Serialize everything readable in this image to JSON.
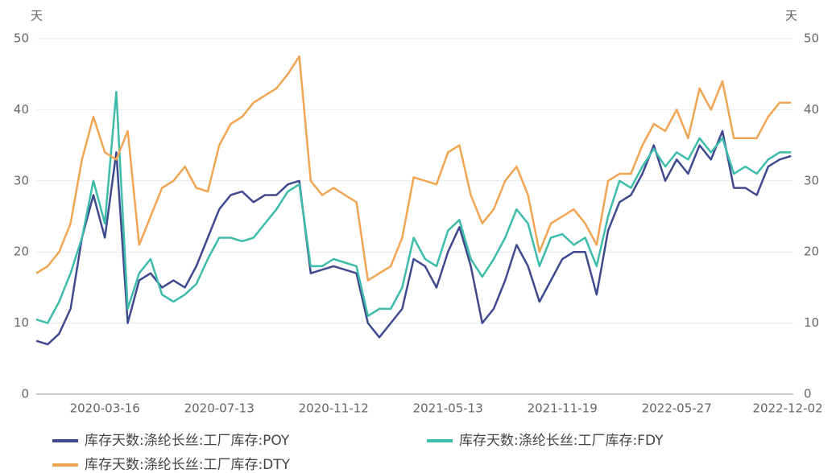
{
  "chart_data": {
    "type": "line",
    "y_label": "天",
    "y2_label": "天",
    "categories": [
      null,
      null,
      null,
      null,
      null,
      null,
      "2020-03-16",
      null,
      null,
      null,
      null,
      null,
      null,
      null,
      null,
      null,
      "2020-07-13",
      null,
      null,
      null,
      null,
      null,
      null,
      null,
      null,
      null,
      "2020-11-12",
      null,
      null,
      null,
      null,
      null,
      null,
      null,
      null,
      null,
      "2021-05-13",
      null,
      null,
      null,
      null,
      null,
      null,
      null,
      null,
      null,
      "2021-11-19",
      null,
      null,
      null,
      null,
      null,
      null,
      null,
      null,
      null,
      "2022-05-27",
      null,
      null,
      null,
      null,
      null,
      null,
      null,
      null,
      null,
      "2022-12-02"
    ],
    "series": [
      {
        "name": "库存天数:涤纶长丝:工厂库存:POY",
        "color": "#3f4a8e",
        "values": [
          7.5,
          7,
          8.5,
          12,
          22,
          28,
          22,
          34,
          10,
          16,
          17,
          15,
          16,
          15,
          18,
          22,
          26,
          28,
          28.5,
          27,
          28,
          28,
          29.5,
          30,
          17,
          17.5,
          18,
          17.5,
          17,
          10,
          8,
          10,
          12,
          19,
          18,
          15,
          20,
          23.5,
          18,
          10,
          12,
          16,
          21,
          18,
          13,
          16,
          19,
          20,
          20,
          14,
          23,
          27,
          28,
          31,
          35,
          30,
          33,
          31,
          35,
          33,
          37,
          29,
          29,
          28,
          32,
          33,
          33.5
        ]
      },
      {
        "name": "库存天数:涤纶长丝:工厂库存:FDY",
        "color": "#3dbcaa",
        "values": [
          10.5,
          10,
          13,
          17,
          22,
          30,
          24,
          42.5,
          12,
          17,
          19,
          14,
          13,
          14,
          15.5,
          19,
          22,
          22,
          21.5,
          22,
          24,
          26,
          28.5,
          29.5,
          18,
          18,
          19,
          18.5,
          18,
          11,
          12,
          12,
          15,
          22,
          19,
          18,
          23,
          24.5,
          19,
          16.5,
          19,
          22,
          26,
          24,
          18,
          22,
          22.5,
          21,
          22,
          18,
          25,
          30,
          29,
          32,
          34.5,
          32,
          34,
          33,
          36,
          34,
          36,
          31,
          32,
          31,
          33,
          34,
          34
        ]
      },
      {
        "name": "库存天数:涤纶长丝:工厂库存:DTY",
        "color": "#f0a553",
        "values": [
          17,
          18,
          20,
          24,
          33,
          39,
          34,
          33,
          37,
          21,
          25,
          29,
          30,
          32,
          29,
          28.5,
          35,
          38,
          39,
          41,
          42,
          43,
          45,
          47.5,
          30,
          28,
          29,
          28,
          27,
          16,
          17,
          18,
          22,
          30.5,
          30,
          29.5,
          34,
          35,
          28,
          24,
          26,
          30,
          32,
          28,
          20,
          24,
          25,
          26,
          24,
          21,
          30,
          31,
          31,
          35,
          38,
          37,
          40,
          36,
          43,
          40,
          44,
          36,
          36,
          36,
          39,
          41,
          41
        ]
      }
    ],
    "ylim": [
      0,
      50
    ],
    "yticks": [
      0,
      10,
      20,
      30,
      40,
      50
    ],
    "y2lim": [
      0,
      50
    ],
    "y2ticks": [
      0,
      10,
      20,
      30,
      40,
      50
    ],
    "grid": true
  }
}
